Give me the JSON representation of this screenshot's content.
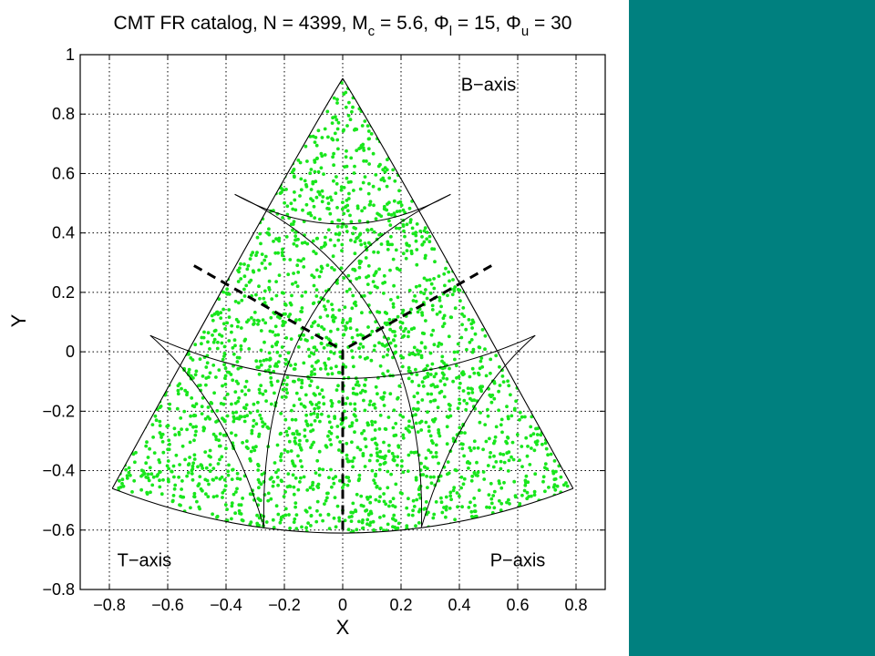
{
  "colors": {
    "panel": "#00807f",
    "points": "#19e61d",
    "lines": "#000000",
    "background": "#ffffff"
  },
  "chart_data": {
    "type": "scatter",
    "title": {
      "prefix": "CMT FR catalog, N = 4399, M",
      "mc_sub": "c",
      "mc_value": " = 5.6, ",
      "phi": "Φ",
      "phi_l_sub": "l",
      "phi_l_value": " = 15, ",
      "phi_u_sub": "u",
      "phi_u_value": " = 30"
    },
    "xlabel": "X",
    "ylabel": "Y",
    "xlim": [
      -0.9,
      0.9
    ],
    "ylim": [
      -0.8,
      1.0
    ],
    "xticks": [
      -0.8,
      -0.6,
      -0.4,
      -0.2,
      0,
      0.2,
      0.4,
      0.6,
      0.8
    ],
    "xtick_labels": [
      "−0.8",
      "−0.6",
      "−0.4",
      "−0.2",
      "0",
      "0.2",
      "0.4",
      "0.6",
      "0.8"
    ],
    "yticks": [
      -0.8,
      -0.6,
      -0.4,
      -0.2,
      0,
      0.2,
      0.4,
      0.6,
      0.8,
      1.0
    ],
    "ytick_labels": [
      "−0.8",
      "−0.6",
      "−0.4",
      "−0.2",
      "0",
      "0.2",
      "0.4",
      "0.6",
      "0.8",
      "1"
    ],
    "grid": true,
    "grid_style": "dotted",
    "annotations": [
      {
        "label": "B−axis",
        "x": 0.5,
        "y": 0.9
      },
      {
        "label": "T−axis",
        "x": -0.68,
        "y": -0.7
      },
      {
        "label": "P−axis",
        "x": 0.6,
        "y": -0.7
      }
    ],
    "triangle_corners": {
      "top": [
        0,
        0.92
      ],
      "left": [
        -0.79,
        -0.46
      ],
      "right": [
        0.79,
        -0.46
      ]
    },
    "boundary_arcs": [
      {
        "from": [
          -0.79,
          -0.46
        ],
        "via": [
          -0.27,
          0.46
        ],
        "to": [
          0,
          0.92
        ]
      },
      {
        "from": [
          0.79,
          -0.46
        ],
        "via": [
          0.27,
          0.46
        ],
        "to": [
          0,
          0.92
        ]
      },
      {
        "from": [
          -0.79,
          -0.46
        ],
        "via": [
          0,
          -0.61
        ],
        "to": [
          0.79,
          -0.46
        ]
      }
    ],
    "contour_arcs": [
      {
        "from": [
          -0.37,
          0.53
        ],
        "via": [
          0,
          0.43
        ],
        "to": [
          0.37,
          0.53
        ]
      },
      {
        "from": [
          -0.66,
          0.055
        ],
        "via": [
          0,
          -0.09
        ],
        "to": [
          0.66,
          0.055
        ]
      },
      {
        "from": [
          -0.66,
          0.055
        ],
        "via": [
          -0.43,
          -0.22
        ],
        "to": [
          -0.27,
          -0.59
        ]
      },
      {
        "from": [
          0.66,
          0.055
        ],
        "via": [
          0.43,
          -0.22
        ],
        "to": [
          0.27,
          -0.59
        ]
      },
      {
        "from": [
          -0.37,
          0.53
        ],
        "via": [
          0.12,
          0.1
        ],
        "to": [
          0.27,
          -0.59
        ]
      },
      {
        "from": [
          0.37,
          0.53
        ],
        "via": [
          -0.12,
          0.1
        ],
        "to": [
          -0.27,
          -0.59
        ]
      }
    ],
    "dashed_lines": [
      {
        "points": [
          [
            -0.51,
            0.29
          ],
          [
            0,
            0.005
          ]
        ]
      },
      {
        "points": [
          [
            0.51,
            0.29
          ],
          [
            0,
            0.005
          ]
        ]
      },
      {
        "points": [
          [
            0,
            0.005
          ],
          [
            0,
            -0.6
          ]
        ]
      }
    ],
    "series": [
      {
        "count": 4399,
        "marker": "dot",
        "color": "#19e61d",
        "distribution": "uniform over the triangle region"
      }
    ]
  }
}
